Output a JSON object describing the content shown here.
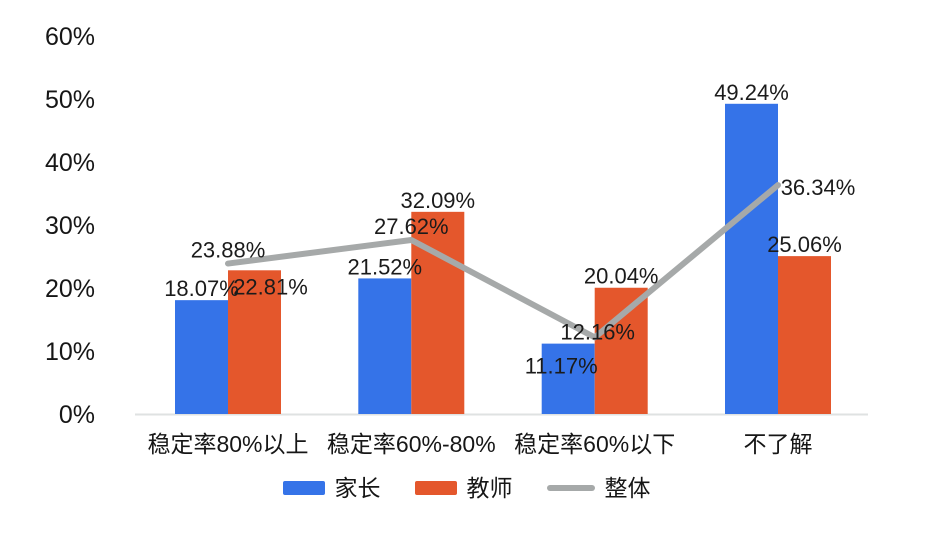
{
  "chart_data": {
    "type": "bar",
    "title": "",
    "xlabel": "",
    "ylabel": "",
    "categories": [
      "稳定率80%以上",
      "稳定率60%-80%",
      "稳定率60%以下",
      "不了解"
    ],
    "series": [
      {
        "name": "家长",
        "type": "bar",
        "color": "#3573E8",
        "values": [
          18.07,
          21.52,
          11.17,
          49.24
        ]
      },
      {
        "name": "教师",
        "type": "bar",
        "color": "#E4572C",
        "values": [
          22.81,
          32.09,
          20.04,
          25.06
        ]
      },
      {
        "name": "整体",
        "type": "line",
        "color": "#A6A9A9",
        "values": [
          23.88,
          27.62,
          12.16,
          36.34
        ]
      }
    ],
    "value_suffix": "%",
    "label_decimals": 2,
    "ylim": [
      0,
      60
    ],
    "y_tick_step": 10,
    "y_ticks": [
      "0%",
      "10%",
      "20%",
      "30%",
      "40%",
      "50%",
      "60%"
    ],
    "grid": false,
    "legend_position": "bottom"
  },
  "colors": {
    "background": "#ffffff",
    "axis_line": "#dfe2e2",
    "text": "#161616"
  }
}
